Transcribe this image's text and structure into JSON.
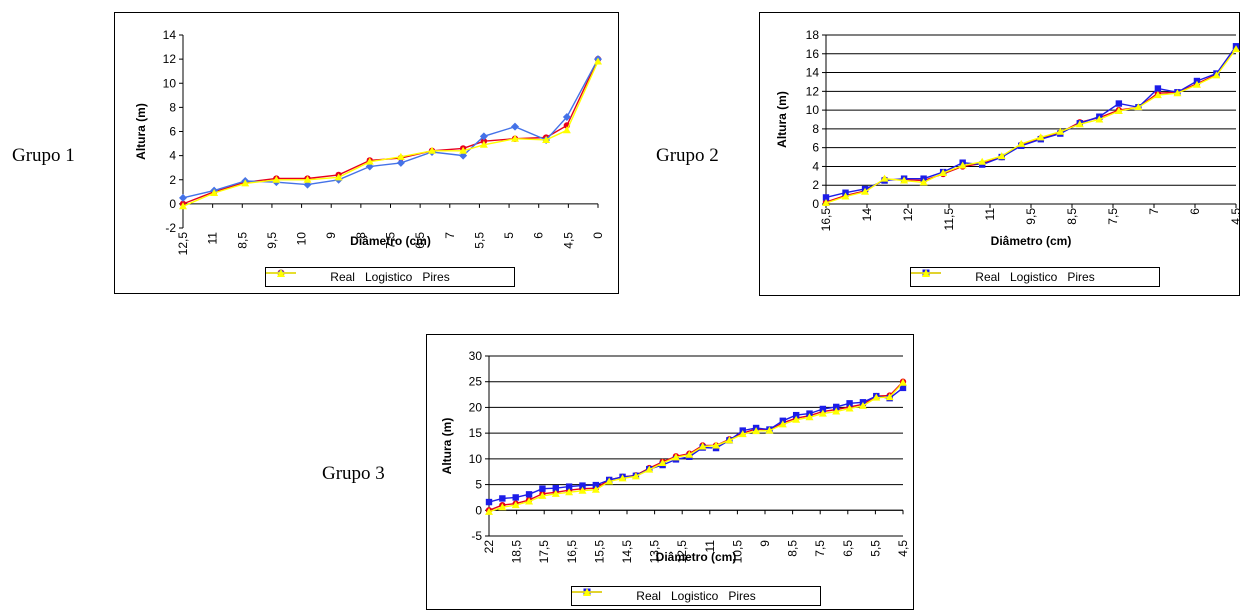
{
  "groups": [
    {
      "label": "Grupo 1"
    },
    {
      "label": "Grupo 2"
    },
    {
      "label": "Grupo 3"
    }
  ],
  "chart_data": [
    {
      "type": "line",
      "xlabel": "Diâmetro (cm)",
      "ylabel": "Altura (m)",
      "ylim": [
        -2,
        14
      ],
      "yticks": [
        -2,
        0,
        2,
        4,
        6,
        8,
        10,
        12,
        14
      ],
      "ytick_labels": [
        "-2",
        "0",
        "2",
        "4",
        "6",
        "8",
        "10",
        "12",
        "14"
      ],
      "grid": false,
      "legend": "bottom",
      "n_points": 20,
      "xtick_labels": [
        {
          "i": 0,
          "label": "12,5"
        },
        {
          "i": 2,
          "label": "11"
        },
        {
          "i": 4,
          "label": "8,5"
        },
        {
          "i": 6,
          "label": "9,5"
        },
        {
          "i": 8,
          "label": "10"
        },
        {
          "i": 10,
          "label": "9"
        },
        {
          "i": 12,
          "label": "8"
        },
        {
          "i": 14,
          "label": "7,5"
        },
        {
          "i": 16,
          "label": "6,5"
        },
        {
          "i": 18,
          "label": "7"
        },
        {
          "i": 20,
          "label": "5,5"
        },
        {
          "i": 22,
          "label": "5"
        },
        {
          "i": 24,
          "label": "6"
        },
        {
          "i": 26,
          "label": "4,5"
        },
        {
          "i": 28,
          "label": "0"
        }
      ],
      "series": [
        {
          "name": "Real",
          "color": "#e8001c",
          "marker": "circle",
          "points": [
            [
              0,
              0
            ],
            [
              3,
              1
            ],
            [
              6,
              1.8
            ],
            [
              9,
              2.1
            ],
            [
              12,
              2.1
            ],
            [
              15,
              2.4
            ],
            [
              18,
              3.6
            ],
            [
              21,
              3.8
            ],
            [
              24,
              4.4
            ],
            [
              27,
              4.6
            ],
            [
              29,
              5.2
            ],
            [
              32,
              5.4
            ],
            [
              35,
              5.5
            ],
            [
              37,
              6.5
            ],
            [
              40,
              12
            ]
          ]
        },
        {
          "name": "Logistico",
          "color": "#4472e8",
          "marker": "diamond",
          "points": [
            [
              0,
              0.5
            ],
            [
              3,
              1.1
            ],
            [
              6,
              1.9
            ],
            [
              9,
              1.8
            ],
            [
              12,
              1.6
            ],
            [
              15,
              2.0
            ],
            [
              18,
              3.1
            ],
            [
              21,
              3.4
            ],
            [
              24,
              4.3
            ],
            [
              27,
              4.0
            ],
            [
              29,
              5.6
            ],
            [
              32,
              6.4
            ],
            [
              35,
              5.3
            ],
            [
              37,
              7.2
            ],
            [
              40,
              12
            ]
          ]
        },
        {
          "name": "Pires",
          "color": "#ffff00",
          "marker": "triangle",
          "points": [
            [
              0,
              -0.2
            ],
            [
              3,
              0.9
            ],
            [
              6,
              1.7
            ],
            [
              9,
              2.0
            ],
            [
              12,
              2.0
            ],
            [
              15,
              2.2
            ],
            [
              18,
              3.5
            ],
            [
              21,
              3.9
            ],
            [
              24,
              4.4
            ],
            [
              27,
              4.4
            ],
            [
              29,
              4.9
            ],
            [
              32,
              5.4
            ],
            [
              35,
              5.3
            ],
            [
              37,
              6.1
            ],
            [
              40,
              11.8
            ]
          ]
        }
      ]
    },
    {
      "type": "line",
      "xlabel": "Diâmetro (cm)",
      "ylabel": "Altura (m)",
      "ylim": [
        0,
        18
      ],
      "yticks": [
        0,
        2,
        4,
        6,
        8,
        10,
        12,
        14,
        16,
        18
      ],
      "ytick_labels": [
        "0",
        "2",
        "4",
        "6",
        "8",
        "10",
        "12",
        "14",
        "16",
        "18"
      ],
      "grid": true,
      "legend": "bottom",
      "n_points": 31,
      "xtick_labels": [
        {
          "i": 0,
          "label": "16,5"
        },
        {
          "i": 3,
          "label": "14"
        },
        {
          "i": 6,
          "label": "12"
        },
        {
          "i": 9,
          "label": "11,5"
        },
        {
          "i": 12,
          "label": "11"
        },
        {
          "i": 15,
          "label": "9,5"
        },
        {
          "i": 18,
          "label": "8,5"
        },
        {
          "i": 21,
          "label": "7,5"
        },
        {
          "i": 24,
          "label": "7"
        },
        {
          "i": 27,
          "label": "6"
        },
        {
          "i": 30,
          "label": "4,5"
        }
      ],
      "series": [
        {
          "name": "Real",
          "color": "#e8001c",
          "marker": "circle",
          "points": [
            [
              0,
              0.2
            ],
            [
              1,
              0.9
            ],
            [
              2,
              1.4
            ],
            [
              3,
              2.6
            ],
            [
              4,
              2.6
            ],
            [
              5,
              2.5
            ],
            [
              6,
              3.2
            ],
            [
              7,
              4.0
            ],
            [
              8,
              4.3
            ],
            [
              9,
              5.0
            ],
            [
              10,
              6.3
            ],
            [
              11,
              7.0
            ],
            [
              12,
              7.6
            ],
            [
              13,
              8.7
            ],
            [
              14,
              9.2
            ],
            [
              15,
              10.0
            ],
            [
              16,
              10.3
            ],
            [
              17,
              11.8
            ],
            [
              18,
              11.9
            ],
            [
              19,
              12.8
            ],
            [
              20,
              13.8
            ],
            [
              21,
              16.6
            ]
          ]
        },
        {
          "name": "Logistico",
          "color": "#1c1ce8",
          "marker": "square",
          "points": [
            [
              0,
              0.7
            ],
            [
              1,
              1.2
            ],
            [
              2,
              1.6
            ],
            [
              3,
              2.5
            ],
            [
              4,
              2.7
            ],
            [
              5,
              2.7
            ],
            [
              6,
              3.4
            ],
            [
              7,
              4.4
            ],
            [
              8,
              4.2
            ],
            [
              9,
              5.0
            ],
            [
              10,
              6.2
            ],
            [
              11,
              6.9
            ],
            [
              12,
              7.5
            ],
            [
              13,
              8.6
            ],
            [
              14,
              9.3
            ],
            [
              15,
              10.7
            ],
            [
              16,
              10.3
            ],
            [
              17,
              12.3
            ],
            [
              18,
              11.9
            ],
            [
              19,
              13.1
            ],
            [
              20,
              13.9
            ],
            [
              21,
              16.8
            ]
          ]
        },
        {
          "name": "Pires",
          "color": "#ffff00",
          "marker": "triangle",
          "points": [
            [
              0,
              0.1
            ],
            [
              1,
              0.8
            ],
            [
              2,
              1.3
            ],
            [
              3,
              2.7
            ],
            [
              4,
              2.5
            ],
            [
              5,
              2.3
            ],
            [
              6,
              3.3
            ],
            [
              7,
              4.1
            ],
            [
              8,
              4.5
            ],
            [
              9,
              5.1
            ],
            [
              10,
              6.4
            ],
            [
              11,
              7.1
            ],
            [
              12,
              7.7
            ],
            [
              13,
              8.5
            ],
            [
              14,
              9.0
            ],
            [
              15,
              9.9
            ],
            [
              16,
              10.3
            ],
            [
              17,
              11.6
            ],
            [
              18,
              11.8
            ],
            [
              19,
              12.7
            ],
            [
              20,
              13.7
            ],
            [
              21,
              16.5
            ]
          ]
        }
      ]
    },
    {
      "type": "line",
      "xlabel": "Diâmetro (cm)",
      "ylabel": "Altura (m)",
      "ylim": [
        -5,
        30
      ],
      "yticks": [
        -5,
        0,
        5,
        10,
        15,
        20,
        25,
        30
      ],
      "ytick_labels": [
        "-5",
        "0",
        "5",
        "10",
        "15",
        "20",
        "25",
        "30"
      ],
      "grid": true,
      "legend": "bottom",
      "n_points": 36,
      "xtick_labels": [
        {
          "i": 0,
          "label": "22"
        },
        {
          "i": 2,
          "label": "18,5"
        },
        {
          "i": 4,
          "label": "17,5"
        },
        {
          "i": 6,
          "label": "16,5"
        },
        {
          "i": 8,
          "label": "15,5"
        },
        {
          "i": 10,
          "label": "14,5"
        },
        {
          "i": 12,
          "label": "13,5"
        },
        {
          "i": 14,
          "label": "12,5"
        },
        {
          "i": 16,
          "label": "11"
        },
        {
          "i": 18,
          "label": "10,5"
        },
        {
          "i": 20,
          "label": "9"
        },
        {
          "i": 22,
          "label": "8,5"
        },
        {
          "i": 24,
          "label": "7,5"
        },
        {
          "i": 26,
          "label": "6,5"
        },
        {
          "i": 28,
          "label": "5,5"
        },
        {
          "i": 30,
          "label": "4,5"
        }
      ],
      "series": [
        {
          "name": "Real",
          "color": "#e8001c",
          "marker": "circle",
          "points": [
            [
              0,
              0
            ],
            [
              1,
              1
            ],
            [
              2,
              1.3
            ],
            [
              3,
              2
            ],
            [
              4,
              3.2
            ],
            [
              5,
              3.5
            ],
            [
              6,
              3.9
            ],
            [
              7,
              4.2
            ],
            [
              8,
              4.3
            ],
            [
              9,
              5.9
            ],
            [
              10,
              6.5
            ],
            [
              11,
              6.8
            ],
            [
              12,
              8.2
            ],
            [
              13,
              9.4
            ],
            [
              14,
              10.5
            ],
            [
              15,
              11
            ],
            [
              16,
              12.6
            ],
            [
              17,
              12.6
            ],
            [
              18,
              13.8
            ],
            [
              19,
              15
            ],
            [
              20,
              15.8
            ],
            [
              21,
              15.6
            ],
            [
              22,
              17
            ],
            [
              23,
              17.9
            ],
            [
              24,
              18.4
            ],
            [
              25,
              19.2
            ],
            [
              26,
              19.6
            ],
            [
              27,
              20.1
            ],
            [
              28,
              20.6
            ],
            [
              29,
              22.2
            ],
            [
              30,
              22.3
            ],
            [
              31,
              25
            ]
          ]
        },
        {
          "name": "Logistico",
          "color": "#1c1ce8",
          "marker": "square",
          "points": [
            [
              0,
              1.6
            ],
            [
              1,
              2.3
            ],
            [
              2,
              2.5
            ],
            [
              3,
              3.1
            ],
            [
              4,
              4.2
            ],
            [
              5,
              4.3
            ],
            [
              6,
              4.6
            ],
            [
              7,
              4.8
            ],
            [
              8,
              4.9
            ],
            [
              9,
              5.9
            ],
            [
              10,
              6.5
            ],
            [
              11,
              6.7
            ],
            [
              12,
              8.0
            ],
            [
              13,
              8.8
            ],
            [
              14,
              9.9
            ],
            [
              15,
              10.4
            ],
            [
              16,
              12.2
            ],
            [
              17,
              12.1
            ],
            [
              18,
              13.6
            ],
            [
              19,
              15.5
            ],
            [
              20,
              16.0
            ],
            [
              21,
              15.7
            ],
            [
              22,
              17.4
            ],
            [
              23,
              18.5
            ],
            [
              24,
              18.8
            ],
            [
              25,
              19.7
            ],
            [
              26,
              20.1
            ],
            [
              27,
              20.8
            ],
            [
              28,
              21.0
            ],
            [
              29,
              22.2
            ],
            [
              30,
              21.8
            ],
            [
              31,
              23.8
            ]
          ]
        },
        {
          "name": "Pires",
          "color": "#ffff00",
          "marker": "triangle",
          "points": [
            [
              0,
              -0.3
            ],
            [
              1,
              0.6
            ],
            [
              2,
              1.0
            ],
            [
              3,
              1.7
            ],
            [
              4,
              2.8
            ],
            [
              5,
              3.2
            ],
            [
              6,
              3.5
            ],
            [
              7,
              3.8
            ],
            [
              8,
              4.0
            ],
            [
              9,
              5.6
            ],
            [
              10,
              6.2
            ],
            [
              11,
              6.6
            ],
            [
              12,
              7.9
            ],
            [
              13,
              9.2
            ],
            [
              14,
              10.3
            ],
            [
              15,
              10.8
            ],
            [
              16,
              12.4
            ],
            [
              17,
              12.6
            ],
            [
              18,
              13.6
            ],
            [
              19,
              14.8
            ],
            [
              20,
              15.4
            ],
            [
              21,
              15.5
            ],
            [
              22,
              16.7
            ],
            [
              23,
              17.6
            ],
            [
              24,
              18.1
            ],
            [
              25,
              18.8
            ],
            [
              26,
              19.2
            ],
            [
              27,
              19.8
            ],
            [
              28,
              20.3
            ],
            [
              29,
              21.9
            ],
            [
              30,
              22.0
            ],
            [
              31,
              24.8
            ]
          ]
        }
      ]
    }
  ]
}
